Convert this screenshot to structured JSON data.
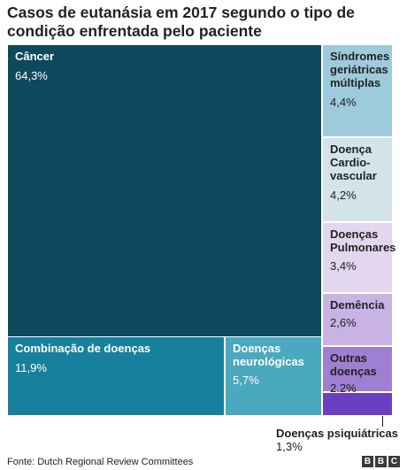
{
  "title": "Casos de eutanásia em 2017 segundo o tipo de condição enfrentada pelo paciente",
  "chart_data": {
    "type": "treemap",
    "unit": "%",
    "items": [
      {
        "name": "Câncer",
        "value": 64.3,
        "value_label": "64,3%",
        "color": "#0e4a5d"
      },
      {
        "name": "Combinação de doenças",
        "value": 11.9,
        "value_label": "11,9%",
        "color": "#17809d"
      },
      {
        "name": "Doenças neurológicas",
        "value": 5.7,
        "value_label": "5,7%",
        "color": "#4aa8bf"
      },
      {
        "name": "Síndromes geriátricas múltiplas",
        "value": 4.4,
        "value_label": "4,4%",
        "color": "#9ecbdc"
      },
      {
        "name": "Doença Cardio-vascular",
        "value": 4.2,
        "value_label": "4,2%",
        "color": "#d2e4ea"
      },
      {
        "name": "Doenças Pulmonares",
        "value": 3.4,
        "value_label": "3,4%",
        "color": "#e3d7f0"
      },
      {
        "name": "Demência",
        "value": 2.6,
        "value_label": "2,6%",
        "color": "#c8b3e4"
      },
      {
        "name": "Outras doenças",
        "value": 2.2,
        "value_label": "2.2%",
        "color": "#9f7fd1"
      },
      {
        "name": "Doenças psiquiátricas",
        "value": 1.3,
        "value_label": "1,3%",
        "color": "#6a3fc2"
      }
    ]
  },
  "footer": {
    "source": "Fonte: Dutch Regional Review Committees",
    "logo_letters": [
      "B",
      "B",
      "C"
    ]
  }
}
